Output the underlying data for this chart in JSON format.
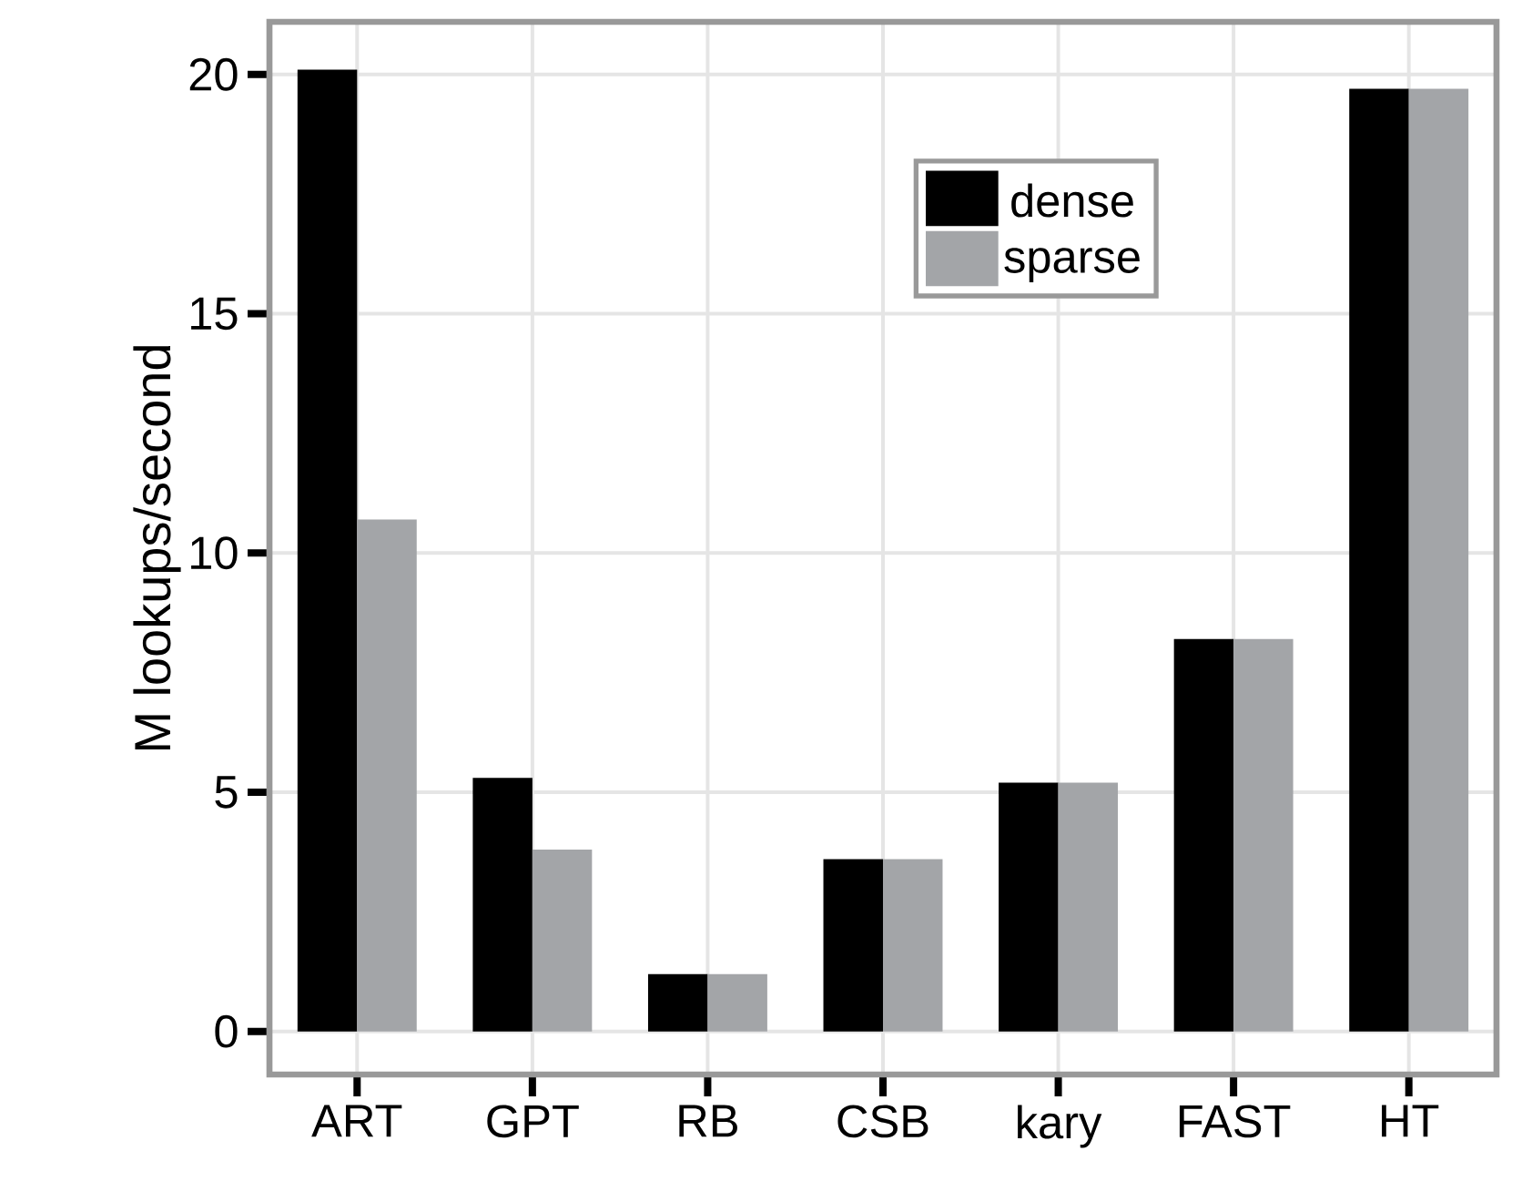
{
  "chart_data": {
    "type": "bar",
    "ylabel": "M lookups/second",
    "categories": [
      "ART",
      "GPT",
      "RB",
      "CSB",
      "kary",
      "FAST",
      "HT"
    ],
    "series": [
      {
        "name": "dense",
        "color": "#000000",
        "values": [
          20.1,
          5.3,
          1.2,
          3.6,
          5.2,
          8.2,
          19.7
        ]
      },
      {
        "name": "sparse",
        "color": "#a3a5a8",
        "values": [
          10.7,
          3.8,
          1.2,
          3.6,
          5.2,
          8.2,
          19.7
        ]
      }
    ],
    "ylim": [
      -0.9,
      21.1
    ],
    "yticks": [
      0,
      5,
      10,
      15,
      20
    ],
    "grid": true,
    "legend": "top right"
  }
}
